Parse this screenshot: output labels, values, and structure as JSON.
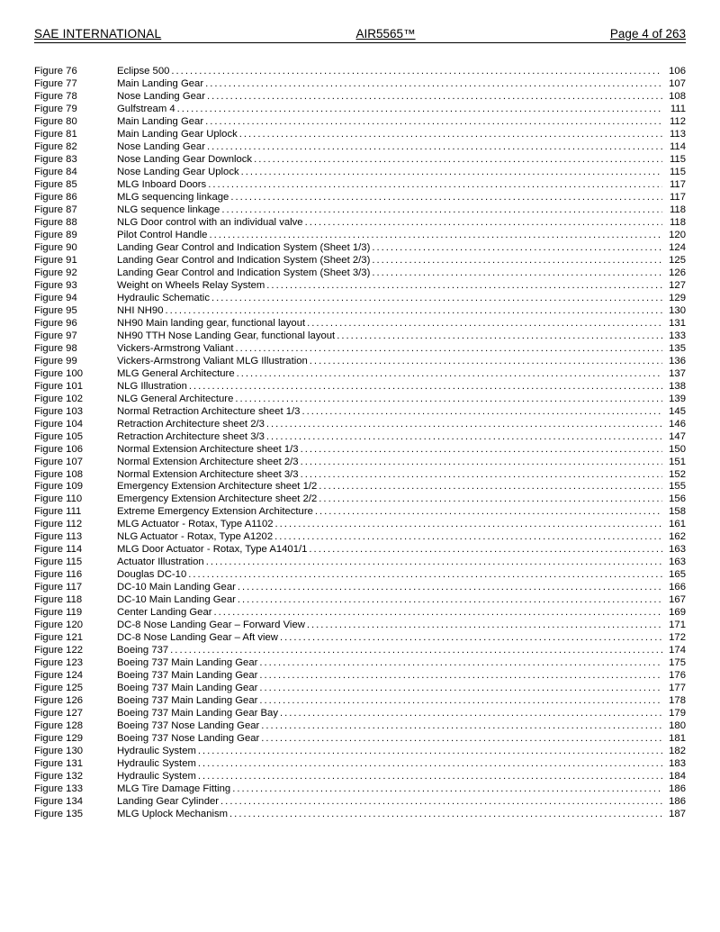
{
  "header": {
    "left": "SAE INTERNATIONAL",
    "center": "AIR5565™",
    "right": "Page 4 of 263"
  },
  "entries": [
    {
      "label": "Figure 76",
      "title": "Eclipse 500",
      "page": "106"
    },
    {
      "label": "Figure 77",
      "title": "Main Landing Gear",
      "page": "107"
    },
    {
      "label": "Figure 78",
      "title": "Nose Landing Gear",
      "page": "108"
    },
    {
      "label": "Figure 79",
      "title": "Gulfstream 4",
      "page": "111"
    },
    {
      "label": "Figure 80",
      "title": "Main Landing Gear",
      "page": "112"
    },
    {
      "label": "Figure 81",
      "title": "Main Landing Gear Uplock",
      "page": "113"
    },
    {
      "label": "Figure 82",
      "title": "Nose Landing Gear",
      "page": "114"
    },
    {
      "label": "Figure 83",
      "title": "Nose Landing Gear Downlock",
      "page": "115"
    },
    {
      "label": "Figure 84",
      "title": "Nose Landing Gear Uplock",
      "page": "115"
    },
    {
      "label": "Figure 85",
      "title": "MLG Inboard Doors",
      "page": "117"
    },
    {
      "label": "Figure 86",
      "title": "MLG sequencing linkage",
      "page": "117"
    },
    {
      "label": "Figure 87",
      "title": "NLG sequence linkage",
      "page": "118"
    },
    {
      "label": "Figure 88",
      "title": "NLG Door control with an individual valve",
      "page": "118"
    },
    {
      "label": "Figure 89",
      "title": "Pilot Control Handle",
      "page": "120"
    },
    {
      "label": "Figure 90",
      "title": "Landing Gear Control and Indication System (Sheet 1/3)",
      "page": "124"
    },
    {
      "label": "Figure 91",
      "title": "Landing Gear Control and Indication System (Sheet 2/3)",
      "page": "125"
    },
    {
      "label": "Figure 92",
      "title": "Landing Gear Control and Indication System (Sheet 3/3)",
      "page": "126"
    },
    {
      "label": "Figure 93",
      "title": "Weight on Wheels Relay System",
      "page": "127"
    },
    {
      "label": "Figure 94",
      "title": "Hydraulic Schematic",
      "page": "129"
    },
    {
      "label": "Figure 95",
      "title": "NHI NH90",
      "page": "130"
    },
    {
      "label": "Figure 96",
      "title": "NH90 Main landing gear, functional layout",
      "page": "131"
    },
    {
      "label": "Figure 97",
      "title": "NH90 TTH Nose Landing Gear, functional layout",
      "page": "133"
    },
    {
      "label": "Figure 98",
      "title": "Vickers-Armstrong Valiant",
      "page": "135"
    },
    {
      "label": "Figure 99",
      "title": "Vickers-Armstrong Valiant MLG Illustration",
      "page": "136"
    },
    {
      "label": "Figure 100",
      "title": "MLG General Architecture",
      "page": "137"
    },
    {
      "label": "Figure 101",
      "title": "NLG Illustration",
      "page": "138"
    },
    {
      "label": "Figure 102",
      "title": "NLG General Architecture",
      "page": "139"
    },
    {
      "label": "Figure 103",
      "title": "Normal Retraction Architecture sheet 1/3",
      "page": "145"
    },
    {
      "label": "Figure 104",
      "title": "Retraction Architecture sheet 2/3",
      "page": "146"
    },
    {
      "label": "Figure 105",
      "title": "Retraction Architecture sheet 3/3",
      "page": "147"
    },
    {
      "label": "Figure 106",
      "title": "Normal Extension Architecture sheet 1/3",
      "page": "150"
    },
    {
      "label": "Figure 107",
      "title": "Normal Extension Architecture sheet 2/3",
      "page": "151"
    },
    {
      "label": "Figure 108",
      "title": "Normal Extension Architecture sheet 3/3",
      "page": "152"
    },
    {
      "label": "Figure 109",
      "title": "Emergency Extension Architecture sheet 1/2",
      "page": "155"
    },
    {
      "label": "Figure 110",
      "title": "Emergency Extension Architecture sheet 2/2",
      "page": "156"
    },
    {
      "label": "Figure 111",
      "title": "Extreme Emergency Extension Architecture",
      "page": "158"
    },
    {
      "label": "Figure 112",
      "title": "MLG Actuator - Rotax, Type A1102",
      "page": "161"
    },
    {
      "label": "Figure 113",
      "title": "NLG Actuator - Rotax, Type A1202",
      "page": "162"
    },
    {
      "label": "Figure 114",
      "title": "MLG Door Actuator - Rotax, Type A1401/1",
      "page": "163"
    },
    {
      "label": "Figure 115",
      "title": "Actuator Illustration",
      "page": "163"
    },
    {
      "label": "Figure 116",
      "title": "Douglas DC-10",
      "page": "165"
    },
    {
      "label": "Figure 117",
      "title": "DC-10 Main Landing Gear",
      "page": "166"
    },
    {
      "label": "Figure 118",
      "title": "DC-10 Main Landing Gear",
      "page": "167"
    },
    {
      "label": "Figure 119",
      "title": "Center Landing Gear",
      "page": "169"
    },
    {
      "label": "Figure 120",
      "title": "DC-8 Nose Landing Gear – Forward View",
      "page": "171"
    },
    {
      "label": "Figure 121",
      "title": "DC-8 Nose Landing Gear – Aft view",
      "page": "172"
    },
    {
      "label": "Figure 122",
      "title": "Boeing 737",
      "page": "174"
    },
    {
      "label": "Figure 123",
      "title": "Boeing 737 Main Landing Gear",
      "page": "175"
    },
    {
      "label": "Figure 124",
      "title": "Boeing 737 Main Landing Gear",
      "page": "176"
    },
    {
      "label": "Figure 125",
      "title": "Boeing 737 Main Landing Gear",
      "page": "177"
    },
    {
      "label": "Figure 126",
      "title": "Boeing 737 Main Landing Gear",
      "page": "178"
    },
    {
      "label": "Figure 127",
      "title": "Boeing 737 Main Landing Gear Bay",
      "page": "179"
    },
    {
      "label": "Figure 128",
      "title": "Boeing 737 Nose Landing Gear",
      "page": "180"
    },
    {
      "label": "Figure 129",
      "title": "Boeing 737 Nose Landing Gear",
      "page": "181"
    },
    {
      "label": "Figure 130",
      "title": "Hydraulic System",
      "page": "182"
    },
    {
      "label": "Figure 131",
      "title": "Hydraulic System",
      "page": "183"
    },
    {
      "label": "Figure 132",
      "title": "Hydraulic System",
      "page": "184"
    },
    {
      "label": "Figure 133",
      "title": "MLG Tire Damage Fitting",
      "page": "186"
    },
    {
      "label": "Figure 134",
      "title": "Landing Gear Cylinder",
      "page": "186"
    },
    {
      "label": "Figure 135",
      "title": "MLG Uplock Mechanism",
      "page": "187"
    }
  ]
}
